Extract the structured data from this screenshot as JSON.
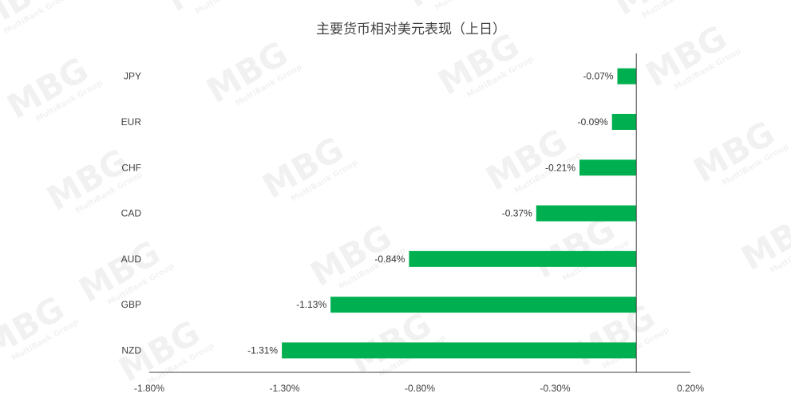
{
  "chart_data": {
    "type": "bar",
    "orientation": "horizontal",
    "title": "主要货币相对美元表现（上日）",
    "categories": [
      "JPY",
      "EUR",
      "CHF",
      "CAD",
      "AUD",
      "GBP",
      "NZD"
    ],
    "values": [
      -0.07,
      -0.09,
      -0.21,
      -0.37,
      -0.84,
      -1.13,
      -1.31
    ],
    "data_labels": [
      "-0.07%",
      "-0.09%",
      "-0.21%",
      "-0.37%",
      "-0.84%",
      "-1.13%",
      "-1.31%"
    ],
    "xlim": [
      -1.8,
      0.2
    ],
    "x_ticks": [
      -1.8,
      -1.3,
      -0.8,
      -0.3,
      0.2
    ],
    "x_tick_labels": [
      "-1.80%",
      "-1.30%",
      "-0.80%",
      "-0.30%",
      "0.20%"
    ],
    "bar_color": "#00B050",
    "grid": false,
    "legend": "none"
  },
  "watermark": {
    "text": "MBG",
    "subtext": "MultiBank Group",
    "color": "#000000"
  }
}
